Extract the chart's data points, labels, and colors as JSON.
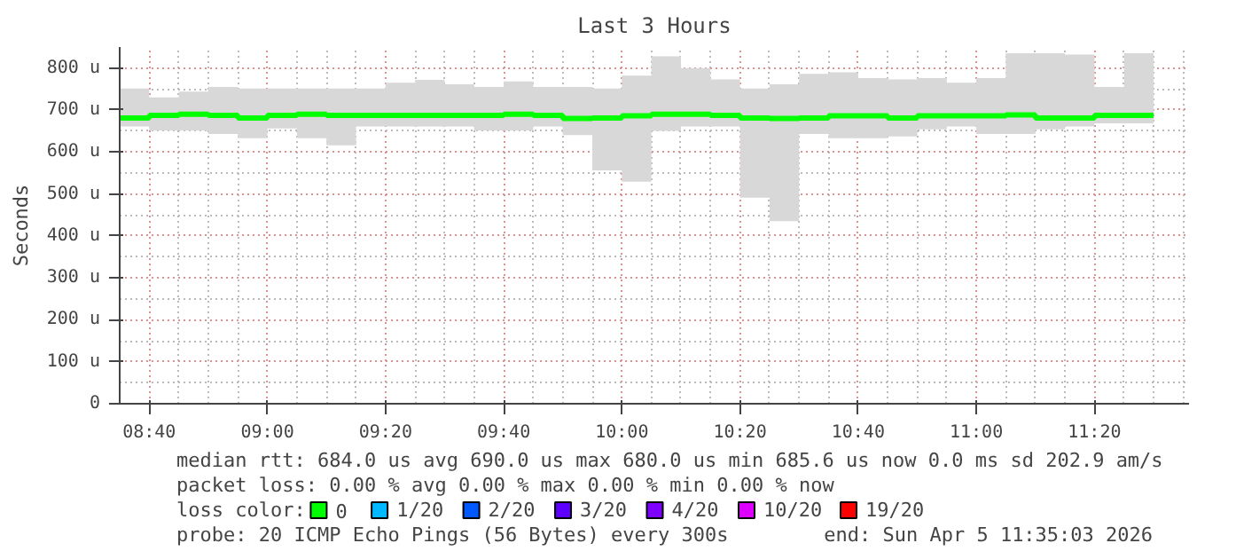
{
  "chart_data": {
    "type": "step",
    "title": "Last 3 Hours",
    "ylabel": "Seconds",
    "x": [
      "2026-04-05T08:35",
      "2026-04-05T08:40",
      "2026-04-05T08:45",
      "2026-04-05T08:50",
      "2026-04-05T08:55",
      "2026-04-05T09:00",
      "2026-04-05T09:05",
      "2026-04-05T09:10",
      "2026-04-05T09:15",
      "2026-04-05T09:20",
      "2026-04-05T09:25",
      "2026-04-05T09:30",
      "2026-04-05T09:35",
      "2026-04-05T09:40",
      "2026-04-05T09:45",
      "2026-04-05T09:50",
      "2026-04-05T09:55",
      "2026-04-05T10:00",
      "2026-04-05T10:05",
      "2026-04-05T10:10",
      "2026-04-05T10:15",
      "2026-04-05T10:20",
      "2026-04-05T10:25",
      "2026-04-05T10:30",
      "2026-04-05T10:35",
      "2026-04-05T10:40",
      "2026-04-05T10:45",
      "2026-04-05T10:50",
      "2026-04-05T10:55",
      "2026-04-05T11:00",
      "2026-04-05T11:05",
      "2026-04-05T11:10",
      "2026-04-05T11:15",
      "2026-04-05T11:20",
      "2026-04-05T11:25",
      "2026-04-05T11:30"
    ],
    "series": [
      {
        "name": "0",
        "color": "#00ff00",
        "values": [
          681,
          687,
          690,
          687,
          681,
          687,
          690,
          687,
          687,
          687,
          687,
          687,
          687,
          690,
          687,
          680,
          681,
          686,
          690,
          690,
          687,
          681,
          680,
          681,
          686,
          686,
          681,
          686,
          686,
          686,
          688,
          681,
          681,
          687,
          687,
          687
        ],
        "lower": [
          661,
          651,
          651,
          643,
          633,
          656,
          633,
          616,
          661,
          661,
          661,
          661,
          651,
          651,
          661,
          640,
          556,
          529,
          650,
          661,
          661,
          491,
          435,
          643,
          633,
          633,
          637,
          654,
          661,
          643,
          643,
          654,
          661,
          668,
          668,
          668
        ],
        "upper": [
          751,
          730,
          744,
          755,
          751,
          751,
          751,
          751,
          751,
          765,
          772,
          761,
          755,
          768,
          755,
          755,
          751,
          782,
          828,
          800,
          773,
          751,
          761,
          786,
          790,
          776,
          773,
          776,
          765,
          776,
          835,
          835,
          832,
          755,
          835,
          835
        ]
      },
      {
        "name": "1/20",
        "color": "#00b8ff",
        "values": [
          null,
          null,
          null,
          null,
          null,
          null,
          null,
          null,
          null,
          null,
          null,
          null,
          null,
          null,
          null,
          null,
          null,
          null,
          null,
          null,
          null,
          null,
          null,
          null,
          null,
          null,
          null,
          null,
          null,
          null,
          null,
          null,
          null,
          null,
          null,
          null
        ]
      },
      {
        "name": "2/20",
        "color": "#0059ff",
        "values": [
          null,
          null,
          null,
          null,
          null,
          null,
          null,
          null,
          null,
          null,
          null,
          null,
          null,
          null,
          null,
          null,
          null,
          null,
          null,
          null,
          null,
          null,
          null,
          null,
          null,
          null,
          null,
          null,
          null,
          null,
          null,
          null,
          null,
          null,
          null,
          null
        ]
      },
      {
        "name": "3/20",
        "color": "#5e00ff",
        "values": [
          null,
          null,
          null,
          null,
          null,
          null,
          null,
          null,
          null,
          null,
          null,
          null,
          null,
          null,
          null,
          null,
          null,
          null,
          null,
          null,
          null,
          null,
          null,
          null,
          null,
          null,
          null,
          null,
          null,
          null,
          null,
          null,
          null,
          null,
          null,
          null
        ]
      },
      {
        "name": "4/20",
        "color": "#7e00ff",
        "values": [
          null,
          null,
          null,
          null,
          null,
          null,
          null,
          null,
          null,
          null,
          null,
          null,
          null,
          null,
          null,
          null,
          null,
          null,
          null,
          null,
          null,
          null,
          null,
          null,
          null,
          null,
          null,
          null,
          null,
          null,
          null,
          null,
          null,
          null,
          null,
          null
        ]
      },
      {
        "name": "10/20",
        "color": "#dd00ff",
        "values": [
          null,
          null,
          null,
          null,
          null,
          null,
          null,
          null,
          null,
          null,
          null,
          null,
          null,
          null,
          null,
          null,
          null,
          null,
          null,
          null,
          null,
          null,
          null,
          null,
          null,
          null,
          null,
          null,
          null,
          null,
          null,
          null,
          null,
          null,
          null,
          null
        ]
      },
      {
        "name": "19/20",
        "color": "#ff0000",
        "values": [
          null,
          null,
          null,
          null,
          null,
          null,
          null,
          null,
          null,
          null,
          null,
          null,
          null,
          null,
          null,
          null,
          null,
          null,
          null,
          null,
          null,
          null,
          null,
          null,
          null,
          null,
          null,
          null,
          null,
          null,
          null,
          null,
          null,
          null,
          null,
          null
        ]
      }
    ],
    "legend_title": "loss color:",
    "legend": "bottom",
    "xlim": [
      "2026-04-05T08:35",
      "2026-04-05T11:36"
    ],
    "xticks": [
      {
        "value": "2026-04-05T08:40",
        "label": "08:40"
      },
      {
        "value": "2026-04-05T09:00",
        "label": "09:00"
      },
      {
        "value": "2026-04-05T09:20",
        "label": "09:20"
      },
      {
        "value": "2026-04-05T09:40",
        "label": "09:40"
      },
      {
        "value": "2026-04-05T10:00",
        "label": "10:00"
      },
      {
        "value": "2026-04-05T10:20",
        "label": "10:20"
      },
      {
        "value": "2026-04-05T10:40",
        "label": "10:40"
      },
      {
        "value": "2026-04-05T11:00",
        "label": "11:00"
      },
      {
        "value": "2026-04-05T11:20",
        "label": "11:20"
      }
    ],
    "ylim": [
      0,
      850
    ],
    "yticks": [
      0,
      {
        "value": 100,
        "label": "100 u"
      },
      {
        "value": 200,
        "label": "200 u"
      },
      {
        "value": 300,
        "label": "300 u"
      },
      {
        "value": 400,
        "label": "400 u"
      },
      {
        "value": 500,
        "label": "500 u"
      },
      {
        "value": 600,
        "label": "600 u"
      },
      {
        "value": 700,
        "label": "700 u"
      },
      {
        "value": 800,
        "label": "800 u"
      }
    ],
    "grid": true,
    "annotations": [
      "median rtt:  684.0 us avg   690.0 us max   680.0 us min   685.6 us now   0.0 ms sd   202.9    am/s",
      "packet loss: 0.00 % avg  0.00 % max  0.00 % min  0.00 % now",
      "probe:       20 ICMP Echo Pings (56 Bytes) every 300s",
      "end: Sun Apr  5 11:35:03 2026"
    ]
  }
}
